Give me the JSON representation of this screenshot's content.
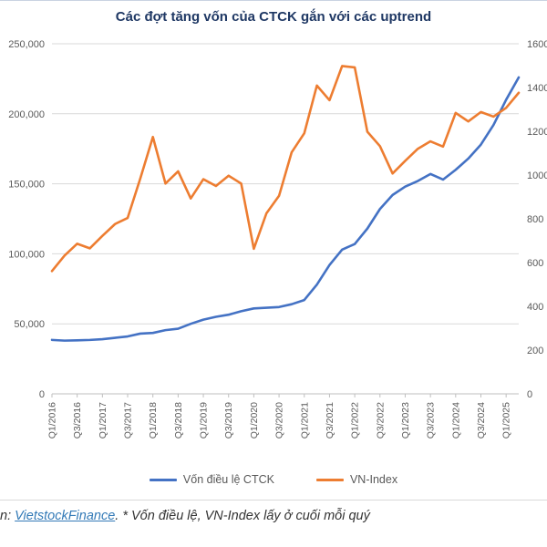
{
  "title": "Các đợt tăng vốn của CTCK gắn với các uptrend",
  "chart_data": {
    "type": "line",
    "title": "Các đợt tăng vốn của CTCK gắn với các uptrend",
    "x": [
      "Q1/2016",
      "Q2/2016",
      "Q3/2016",
      "Q4/2016",
      "Q1/2017",
      "Q2/2017",
      "Q3/2017",
      "Q4/2017",
      "Q1/2018",
      "Q2/2018",
      "Q3/2018",
      "Q4/2018",
      "Q1/2019",
      "Q2/2019",
      "Q3/2019",
      "Q4/2019",
      "Q1/2020",
      "Q2/2020",
      "Q3/2020",
      "Q4/2020",
      "Q1/2021",
      "Q2/2021",
      "Q3/2021",
      "Q4/2021",
      "Q1/2022",
      "Q2/2022",
      "Q3/2022",
      "Q4/2022",
      "Q1/2023",
      "Q2/2023",
      "Q3/2023",
      "Q4/2023",
      "Q1/2024",
      "Q2/2024",
      "Q3/2024",
      "Q4/2024",
      "Q1/2025",
      "Q2/2025"
    ],
    "x_label_every": 2,
    "series": [
      {
        "name": "Vốn điều lệ CTCK",
        "axis": "left",
        "color": "#4472C4",
        "values": [
          38500,
          38000,
          38200,
          38500,
          39000,
          40000,
          41000,
          43000,
          43500,
          45500,
          46500,
          50000,
          53000,
          55000,
          56500,
          59000,
          61000,
          61500,
          62000,
          64000,
          67000,
          78000,
          92000,
          103000,
          107000,
          118000,
          132000,
          142000,
          148000,
          152000,
          157000,
          153000,
          160000,
          168000,
          178000,
          192000,
          210000,
          226000
        ]
      },
      {
        "name": "VN-Index",
        "axis": "right",
        "color": "#ED7D31",
        "values": [
          561,
          632,
          686,
          665,
          722,
          776,
          804,
          984,
          1174,
          961,
          1017,
          893,
          981,
          950,
          997,
          961,
          663,
          825,
          905,
          1104,
          1191,
          1409,
          1342,
          1498,
          1492,
          1198,
          1132,
          1007,
          1065,
          1120,
          1154,
          1130,
          1284,
          1245,
          1288,
          1267,
          1307,
          1376
        ]
      }
    ],
    "left_axis": {
      "min": 0,
      "max": 250000,
      "step": 50000,
      "label_format": "thousands-comma"
    },
    "right_axis": {
      "min": 0,
      "max": 1600,
      "step": 200,
      "label_format": "plain"
    },
    "grid": true,
    "legend_position": "bottom",
    "axis_text_color": "#595959",
    "grid_color": "#D9D9D9",
    "axis_line_color": "#BFBFBF"
  },
  "footer": {
    "prefix": "n: ",
    "link_text": "VietstockFinance",
    "suffix": ". * Vốn điều lệ, VN-Index lấy ở cuối mỗi quý"
  }
}
